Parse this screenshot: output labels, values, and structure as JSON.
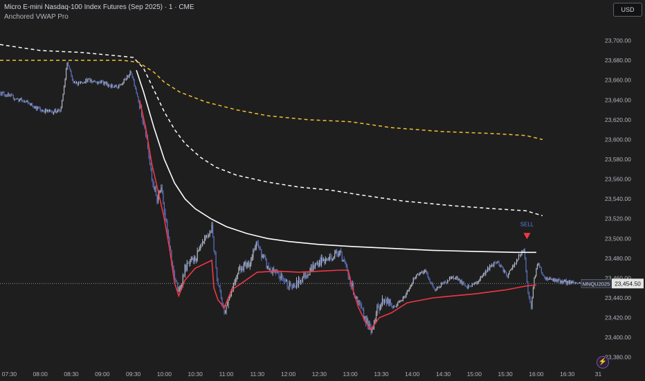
{
  "legend": {
    "title": "Micro E-mini Nasdaq-100 Index Futures (Sep 2025) · 1 · CME",
    "indicator": "Anchored VWAP Pro"
  },
  "currency": "USD",
  "price_tag": {
    "symbol": "MNQU2025",
    "price": "23,454.50"
  },
  "logo_icon": "lightning-bolt-icon",
  "colors": {
    "background": "#1e1e1e",
    "up": "#b2b5be",
    "down": "#5b73c2",
    "vwap_white": "#ffffff",
    "vwap_red": "#f23645",
    "band_yellow": "#f2c12e",
    "sell": "#f23645"
  },
  "chart_data": {
    "type": "line",
    "title": "Micro E-mini Nasdaq-100 Index Futures (Sep 2025) · 1 · CME",
    "ylim": [
      23370,
      23720
    ],
    "y_ticks": [
      "23,380.00",
      "23,400.00",
      "23,420.00",
      "23,440.00",
      "23,460.00",
      "23,480.00",
      "23,500.00",
      "23,520.00",
      "23,540.00",
      "23,560.00",
      "23,580.00",
      "23,600.00",
      "23,620.00",
      "23,640.00",
      "23,660.00",
      "23,680.00",
      "23,700.00"
    ],
    "y_tick_values": [
      23380,
      23400,
      23420,
      23440,
      23460,
      23480,
      23500,
      23520,
      23540,
      23560,
      23580,
      23600,
      23620,
      23640,
      23660,
      23680,
      23700
    ],
    "x_ticks": [
      "07:30",
      "08:00",
      "08:30",
      "09:00",
      "09:30",
      "10:00",
      "10:30",
      "11:00",
      "11:30",
      "12:00",
      "12:30",
      "13:00",
      "13:30",
      "14:00",
      "14:30",
      "15:00",
      "15:30",
      "16:00",
      "16:30",
      "31"
    ],
    "x_tick_minutes": [
      450,
      480,
      510,
      540,
      570,
      600,
      630,
      660,
      690,
      720,
      750,
      780,
      810,
      840,
      870,
      900,
      930,
      960,
      990,
      1020
    ],
    "x_range_minutes": [
      441,
      1021
    ],
    "last_price": 23454.5,
    "price_path": [
      {
        "t": 441,
        "p": 23648
      },
      {
        "t": 455,
        "p": 23642
      },
      {
        "t": 470,
        "p": 23636
      },
      {
        "t": 480,
        "p": 23630
      },
      {
        "t": 490,
        "p": 23628
      },
      {
        "t": 500,
        "p": 23630
      },
      {
        "t": 506,
        "p": 23678
      },
      {
        "t": 512,
        "p": 23656
      },
      {
        "t": 525,
        "p": 23660
      },
      {
        "t": 540,
        "p": 23658
      },
      {
        "t": 555,
        "p": 23652
      },
      {
        "t": 568,
        "p": 23668
      },
      {
        "t": 575,
        "p": 23640
      },
      {
        "t": 582,
        "p": 23605
      },
      {
        "t": 588,
        "p": 23560
      },
      {
        "t": 593,
        "p": 23540
      },
      {
        "t": 597,
        "p": 23555
      },
      {
        "t": 603,
        "p": 23505
      },
      {
        "t": 608,
        "p": 23470
      },
      {
        "t": 614,
        "p": 23445
      },
      {
        "t": 620,
        "p": 23470
      },
      {
        "t": 630,
        "p": 23480
      },
      {
        "t": 638,
        "p": 23495
      },
      {
        "t": 646,
        "p": 23510
      },
      {
        "t": 652,
        "p": 23455
      },
      {
        "t": 658,
        "p": 23425
      },
      {
        "t": 664,
        "p": 23445
      },
      {
        "t": 672,
        "p": 23470
      },
      {
        "t": 682,
        "p": 23475
      },
      {
        "t": 690,
        "p": 23495
      },
      {
        "t": 700,
        "p": 23470
      },
      {
        "t": 714,
        "p": 23460
      },
      {
        "t": 725,
        "p": 23450
      },
      {
        "t": 735,
        "p": 23462
      },
      {
        "t": 748,
        "p": 23475
      },
      {
        "t": 760,
        "p": 23480
      },
      {
        "t": 770,
        "p": 23488
      },
      {
        "t": 778,
        "p": 23462
      },
      {
        "t": 787,
        "p": 23435
      },
      {
        "t": 795,
        "p": 23418
      },
      {
        "t": 800,
        "p": 23405
      },
      {
        "t": 806,
        "p": 23428
      },
      {
        "t": 813,
        "p": 23440
      },
      {
        "t": 822,
        "p": 23430
      },
      {
        "t": 832,
        "p": 23440
      },
      {
        "t": 842,
        "p": 23460
      },
      {
        "t": 852,
        "p": 23468
      },
      {
        "t": 862,
        "p": 23448
      },
      {
        "t": 872,
        "p": 23456
      },
      {
        "t": 882,
        "p": 23462
      },
      {
        "t": 892,
        "p": 23450
      },
      {
        "t": 902,
        "p": 23455
      },
      {
        "t": 912,
        "p": 23468
      },
      {
        "t": 922,
        "p": 23478
      },
      {
        "t": 932,
        "p": 23462
      },
      {
        "t": 942,
        "p": 23480
      },
      {
        "t": 948,
        "p": 23490
      },
      {
        "t": 952,
        "p": 23445
      },
      {
        "t": 955,
        "p": 23430
      },
      {
        "t": 958,
        "p": 23460
      },
      {
        "t": 962,
        "p": 23475
      },
      {
        "t": 966,
        "p": 23462
      },
      {
        "t": 975,
        "p": 23458
      },
      {
        "t": 990,
        "p": 23456
      },
      {
        "t": 1005,
        "p": 23455
      },
      {
        "t": 1021,
        "p": 23456
      }
    ],
    "series": [
      {
        "name": "",
        "style": "white-solid",
        "points": [
          {
            "t": 573,
            "p": 23670
          },
          {
            "t": 580,
            "p": 23648
          },
          {
            "t": 590,
            "p": 23612
          },
          {
            "t": 600,
            "p": 23580
          },
          {
            "t": 610,
            "p": 23556
          },
          {
            "t": 620,
            "p": 23540
          },
          {
            "t": 630,
            "p": 23530
          },
          {
            "t": 645,
            "p": 23520
          },
          {
            "t": 660,
            "p": 23512
          },
          {
            "t": 680,
            "p": 23505
          },
          {
            "t": 700,
            "p": 23500
          },
          {
            "t": 720,
            "p": 23497
          },
          {
            "t": 750,
            "p": 23494
          },
          {
            "t": 780,
            "p": 23492
          },
          {
            "t": 820,
            "p": 23490
          },
          {
            "t": 860,
            "p": 23488
          },
          {
            "t": 900,
            "p": 23487
          },
          {
            "t": 940,
            "p": 23486
          },
          {
            "t": 960,
            "p": 23486
          }
        ]
      },
      {
        "name": "",
        "style": "white-dashed",
        "points": [
          {
            "t": 441,
            "p": 23696
          },
          {
            "t": 480,
            "p": 23690
          },
          {
            "t": 520,
            "p": 23688
          },
          {
            "t": 560,
            "p": 23684
          },
          {
            "t": 570,
            "p": 23683
          },
          {
            "t": 580,
            "p": 23672
          },
          {
            "t": 590,
            "p": 23650
          },
          {
            "t": 600,
            "p": 23628
          },
          {
            "t": 610,
            "p": 23610
          },
          {
            "t": 620,
            "p": 23596
          },
          {
            "t": 635,
            "p": 23582
          },
          {
            "t": 650,
            "p": 23572
          },
          {
            "t": 670,
            "p": 23564
          },
          {
            "t": 700,
            "p": 23557
          },
          {
            "t": 730,
            "p": 23552
          },
          {
            "t": 760,
            "p": 23549
          },
          {
            "t": 790,
            "p": 23544
          },
          {
            "t": 830,
            "p": 23538
          },
          {
            "t": 880,
            "p": 23533
          },
          {
            "t": 920,
            "p": 23530
          },
          {
            "t": 950,
            "p": 23528
          },
          {
            "t": 966,
            "p": 23523
          }
        ]
      },
      {
        "name": "",
        "style": "yellow-dashed",
        "points": [
          {
            "t": 441,
            "p": 23680
          },
          {
            "t": 480,
            "p": 23680
          },
          {
            "t": 520,
            "p": 23680
          },
          {
            "t": 560,
            "p": 23680
          },
          {
            "t": 575,
            "p": 23678
          },
          {
            "t": 590,
            "p": 23668
          },
          {
            "t": 600,
            "p": 23658
          },
          {
            "t": 615,
            "p": 23648
          },
          {
            "t": 640,
            "p": 23638
          },
          {
            "t": 670,
            "p": 23630
          },
          {
            "t": 700,
            "p": 23624
          },
          {
            "t": 740,
            "p": 23620
          },
          {
            "t": 780,
            "p": 23618
          },
          {
            "t": 820,
            "p": 23612
          },
          {
            "t": 870,
            "p": 23608
          },
          {
            "t": 920,
            "p": 23606
          },
          {
            "t": 950,
            "p": 23604
          },
          {
            "t": 966,
            "p": 23600
          }
        ]
      },
      {
        "name": "",
        "style": "red-solid",
        "points": [
          {
            "t": 576,
            "p": 23640
          },
          {
            "t": 582,
            "p": 23612
          },
          {
            "t": 588,
            "p": 23575
          },
          {
            "t": 594,
            "p": 23548
          },
          {
            "t": 600,
            "p": 23520
          },
          {
            "t": 605,
            "p": 23490
          },
          {
            "t": 610,
            "p": 23455
          },
          {
            "t": 614,
            "p": 23442
          },
          {
            "t": 620,
            "p": 23458
          },
          {
            "t": 630,
            "p": 23470
          },
          {
            "t": 640,
            "p": 23475
          },
          {
            "t": 646,
            "p": 23478
          },
          {
            "t": 648,
            "p": 23450
          },
          {
            "t": 652,
            "p": 23438
          },
          {
            "t": 658,
            "p": 23430
          },
          {
            "t": 665,
            "p": 23448
          },
          {
            "t": 675,
            "p": 23455
          },
          {
            "t": 690,
            "p": 23466
          },
          {
            "t": 710,
            "p": 23467
          },
          {
            "t": 730,
            "p": 23466
          },
          {
            "t": 750,
            "p": 23467
          },
          {
            "t": 770,
            "p": 23468
          },
          {
            "t": 778,
            "p": 23468
          },
          {
            "t": 782,
            "p": 23450
          },
          {
            "t": 788,
            "p": 23430
          },
          {
            "t": 795,
            "p": 23415
          },
          {
            "t": 800,
            "p": 23408
          },
          {
            "t": 808,
            "p": 23420
          },
          {
            "t": 820,
            "p": 23425
          },
          {
            "t": 835,
            "p": 23435
          },
          {
            "t": 860,
            "p": 23440
          },
          {
            "t": 880,
            "p": 23442
          },
          {
            "t": 900,
            "p": 23444
          },
          {
            "t": 930,
            "p": 23448
          },
          {
            "t": 950,
            "p": 23452
          },
          {
            "t": 960,
            "p": 23453
          }
        ]
      }
    ],
    "annotations": [
      {
        "text": "SELL",
        "t": 951,
        "p": 23500
      }
    ],
    "grid": false
  }
}
